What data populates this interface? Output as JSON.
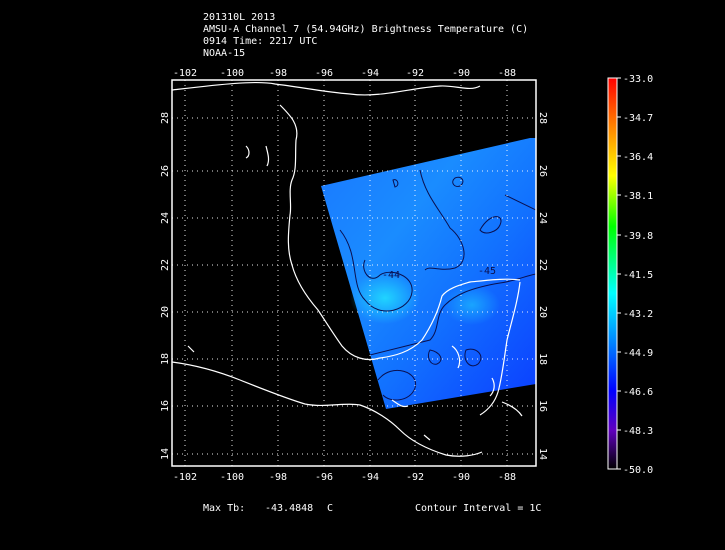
{
  "header": {
    "line1": "201310L 2013",
    "line2": "AMSU-A Channel 7 (54.94GHz) Brightness Temperature (C)",
    "line3": "0914 Time: 2217 UTC",
    "line4": "NOAA-15"
  },
  "map": {
    "lon_labels": [
      "-102",
      "-100",
      "-98",
      "-96",
      "-94",
      "-92",
      "-90",
      "-88"
    ],
    "lat_labels": [
      "14",
      "16",
      "18",
      "20",
      "22",
      "24",
      "26",
      "28"
    ],
    "contour_labels": [
      "-44",
      "-45"
    ],
    "lon_range": [
      -103,
      -86.3
    ],
    "lat_range": [
      13.6,
      29.8
    ]
  },
  "colorbar": {
    "labels": [
      "-33.0",
      "-34.7",
      "-36.4",
      "-38.1",
      "-39.8",
      "-41.5",
      "-43.2",
      "-44.9",
      "-46.6",
      "-48.3",
      "-50.0"
    ],
    "colors": [
      "#ff0000",
      "#ff7f00",
      "#ffff00",
      "#00ff00",
      "#00ffff",
      "#0080ff",
      "#0000ff",
      "#6000c0",
      "#000000"
    ]
  },
  "footer": {
    "max_label": "Max Tb:",
    "max_value": "-43.4848",
    "max_unit": "C",
    "contour": "Contour Interval = 1C"
  }
}
